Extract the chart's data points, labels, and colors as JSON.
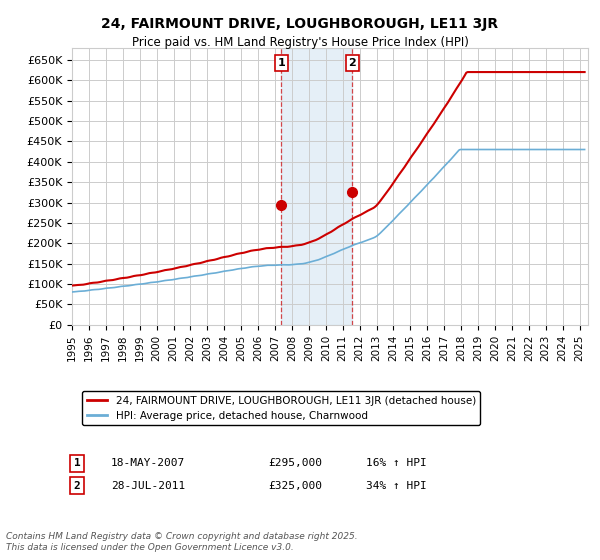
{
  "title": "24, FAIRMOUNT DRIVE, LOUGHBOROUGH, LE11 3JR",
  "subtitle": "Price paid vs. HM Land Registry's House Price Index (HPI)",
  "legend_line1": "24, FAIRMOUNT DRIVE, LOUGHBOROUGH, LE11 3JR (detached house)",
  "legend_line2": "HPI: Average price, detached house, Charnwood",
  "footer": "Contains HM Land Registry data © Crown copyright and database right 2025.\nThis data is licensed under the Open Government Licence v3.0.",
  "sale1_label": "1",
  "sale1_date": "18-MAY-2007",
  "sale1_price": "£295,000",
  "sale1_hpi": "16% ↑ HPI",
  "sale2_label": "2",
  "sale2_date": "28-JUL-2011",
  "sale2_price": "£325,000",
  "sale2_hpi": "34% ↑ HPI",
  "hpi_color": "#6baed6",
  "price_color": "#cc0000",
  "highlight_color": "#cce0f0",
  "highlight_alpha": 0.5,
  "sale1_x": 2007.38,
  "sale2_x": 2011.57,
  "sale1_y": 295000,
  "sale2_y": 325000,
  "ylim": [
    0,
    680000
  ],
  "xlim_start": 1995,
  "xlim_end": 2025.5,
  "yticks": [
    0,
    50000,
    100000,
    150000,
    200000,
    250000,
    300000,
    350000,
    400000,
    450000,
    500000,
    550000,
    600000,
    650000
  ],
  "xticks": [
    1995,
    1996,
    1997,
    1998,
    1999,
    2000,
    2001,
    2002,
    2003,
    2004,
    2005,
    2006,
    2007,
    2008,
    2009,
    2010,
    2011,
    2012,
    2013,
    2014,
    2015,
    2016,
    2017,
    2018,
    2019,
    2020,
    2021,
    2022,
    2023,
    2024,
    2025
  ],
  "grid_color": "#cccccc",
  "background_color": "#ffffff"
}
